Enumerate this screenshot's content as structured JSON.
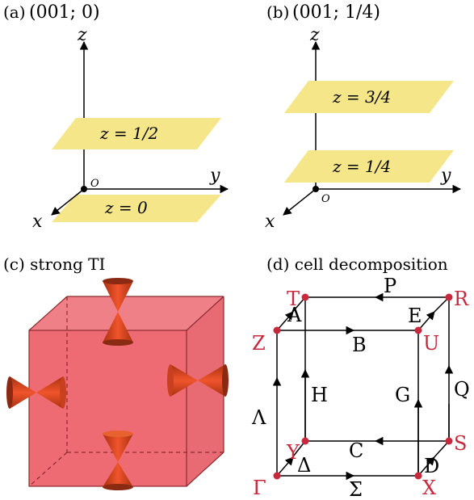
{
  "panel_a": {
    "label": "(a)",
    "title": "(001; 0)",
    "axis_z": "z",
    "axis_y": "y",
    "axis_x": "x",
    "origin": "O",
    "plane_top": "z = 1/2",
    "plane_bottom": "z = 0"
  },
  "panel_b": {
    "label": "(b)",
    "title": "(001; 1/4)",
    "axis_z": "z",
    "axis_y": "y",
    "axis_x": "x",
    "origin": "O",
    "plane_top": "z = 3/4",
    "plane_bottom": "z = 1/4"
  },
  "panel_c": {
    "label": "(c) strong TI"
  },
  "panel_d": {
    "label": "(d) cell decomposition",
    "points": {
      "T": "T",
      "R": "R",
      "Z": "Z",
      "U": "U",
      "Y": "Y",
      "S": "S",
      "Gamma": "Γ",
      "X": "X"
    },
    "paths": {
      "A": "A",
      "P": "P",
      "E": "E",
      "B": "B",
      "Q": "Q",
      "H": "H",
      "G": "G",
      "Lambda": "Λ",
      "C": "C",
      "Delta": "Δ",
      "D": "D",
      "Sigma": "Σ"
    }
  },
  "colors": {
    "plane_yellow": "#f5e68a",
    "cube_red": "#ef6b74",
    "cone_red": "#d8432c",
    "cone_dark": "#8a2a12",
    "point_red": "#c8283c"
  }
}
